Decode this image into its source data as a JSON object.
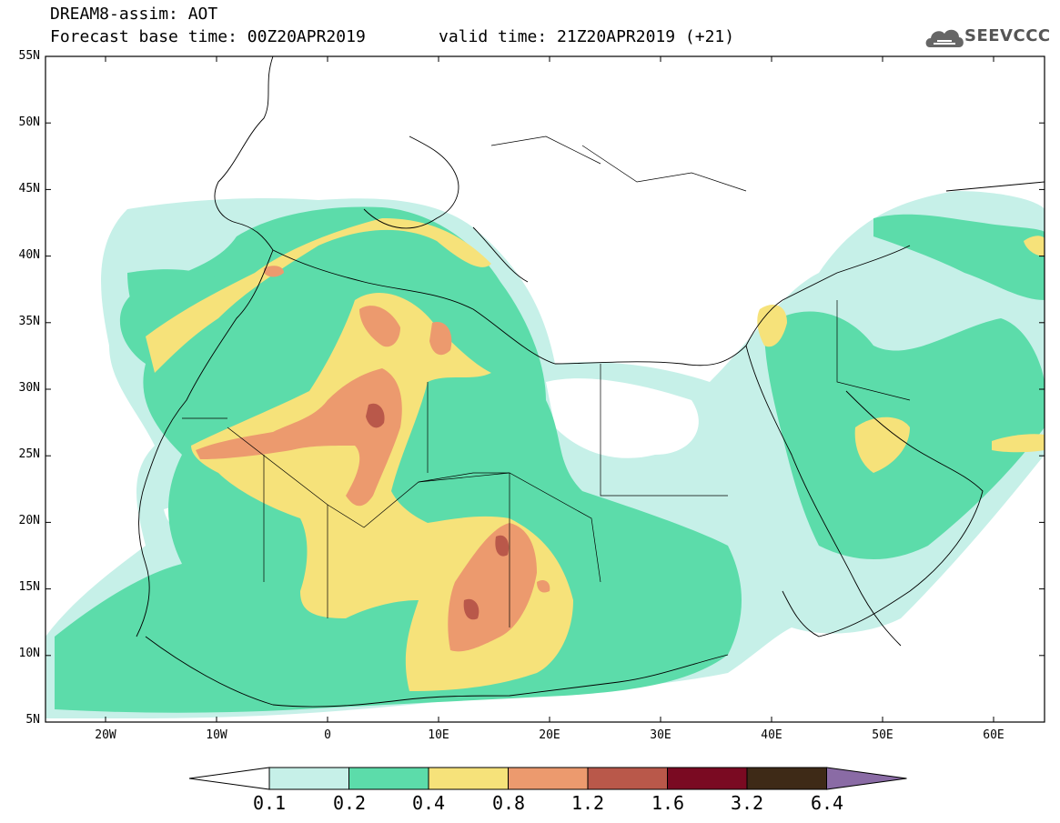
{
  "header": {
    "model_field": "DREAM8-assim: AOT",
    "base_time": "Forecast base time: 00Z20APR2019",
    "valid_time": "valid time: 21Z20APR2019 (+21)",
    "logo_text": "SEEVCCC"
  },
  "map": {
    "lat_labels": [
      "55N",
      "50N",
      "45N",
      "40N",
      "35N",
      "30N",
      "25N",
      "20N",
      "15N",
      "10N",
      "5N"
    ],
    "lon_labels": [
      "20W",
      "10W",
      "0",
      "10E",
      "20E",
      "30E",
      "40E",
      "50E",
      "60E"
    ],
    "extent": {
      "lon_min": -25,
      "lon_max": 65,
      "lat_min": 5,
      "lat_max": 55
    }
  },
  "legend": {
    "levels": [
      "0.1",
      "0.2",
      "0.4",
      "0.8",
      "1.2",
      "1.6",
      "3.2",
      "6.4"
    ],
    "colors": [
      "#ffffff",
      "#c6f0e8",
      "#5cdcaa",
      "#f6e27a",
      "#ec9a6e",
      "#b9584a",
      "#7a0a22",
      "#3e2a17",
      "#8a6ba5"
    ]
  }
}
